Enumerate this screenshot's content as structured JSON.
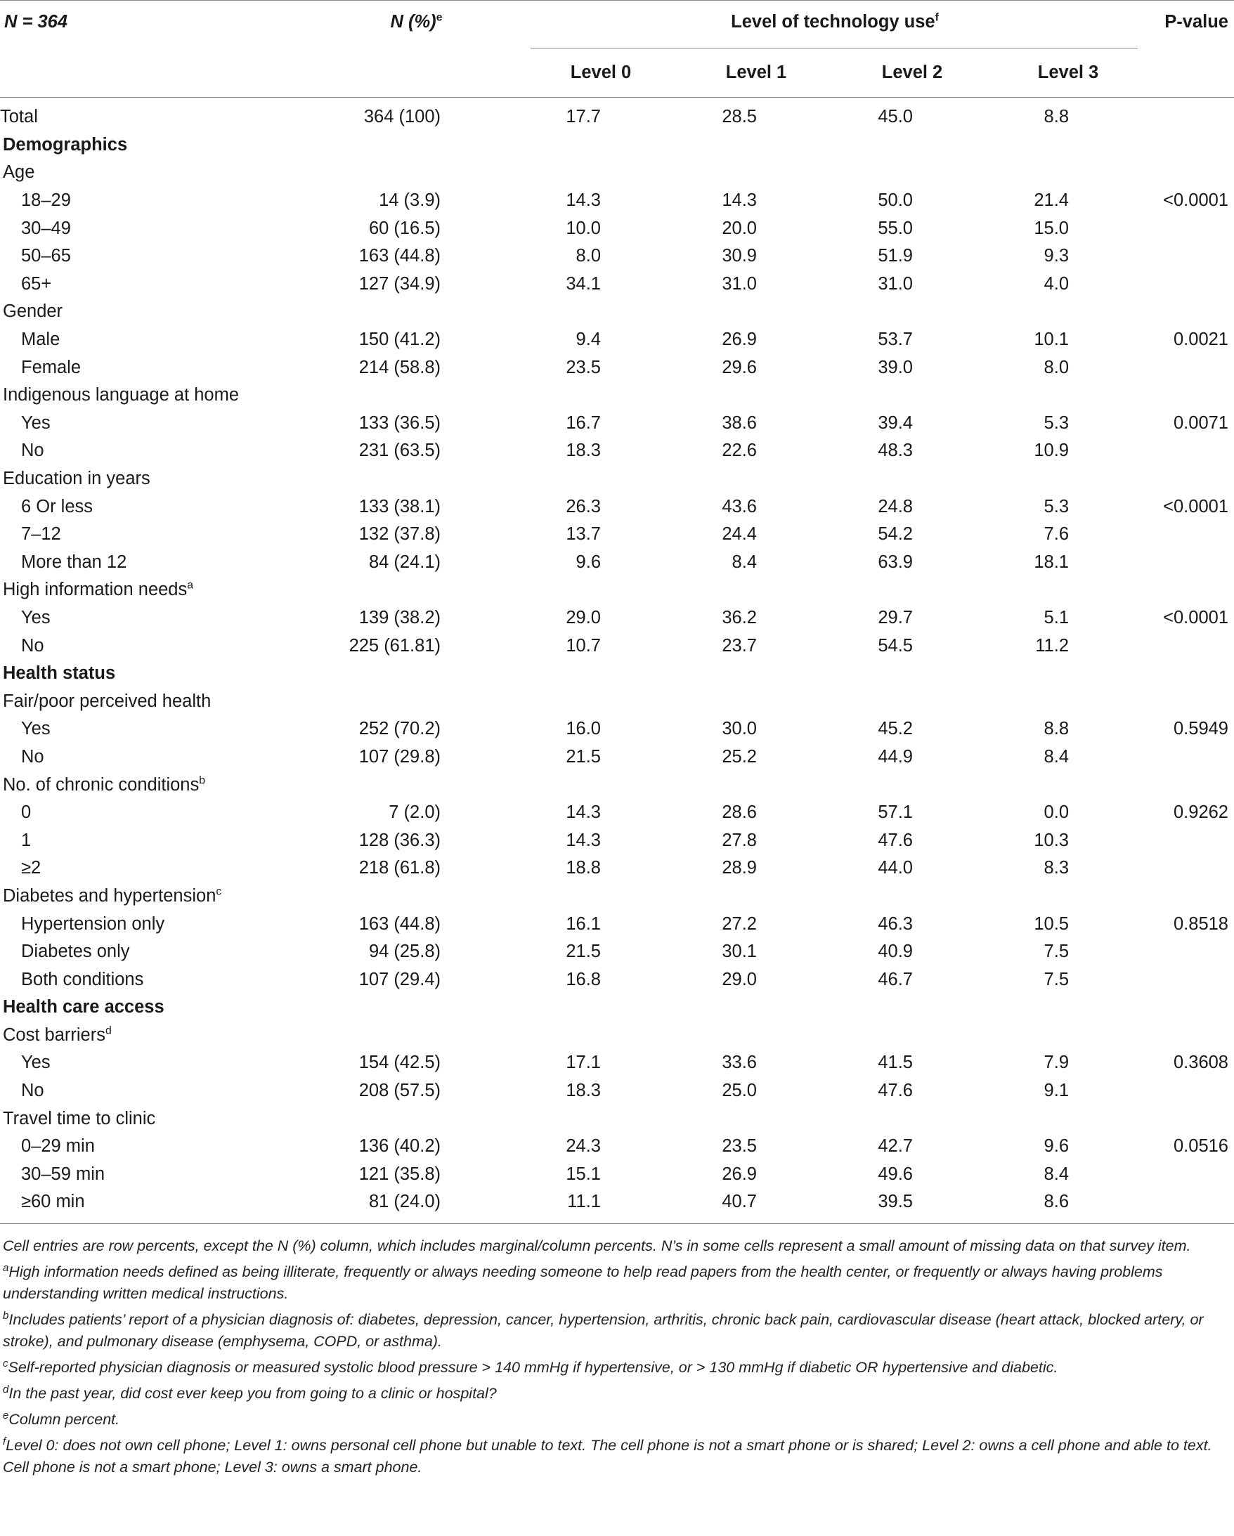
{
  "header": {
    "n_label": "N = 364",
    "npct_label": "N (%)",
    "npct_sup": "e",
    "level_group_label": "Level of technology use",
    "level_group_sup": "f",
    "pvalue_label": "P-value",
    "levels": [
      "Level 0",
      "Level 1",
      "Level 2",
      "Level 3"
    ]
  },
  "rows": [
    {
      "type": "data",
      "indent": 0,
      "label": "Total",
      "n": "364 (100)",
      "l0": "17.7",
      "l1": "28.5",
      "l2": "45.0",
      "l3": "8.8",
      "p": ""
    },
    {
      "type": "section",
      "label": "Demographics"
    },
    {
      "type": "group",
      "label": "Age",
      "sup": ""
    },
    {
      "type": "data",
      "indent": 2,
      "label": "18–29",
      "n": "14 (3.9)",
      "l0": "14.3",
      "l1": "14.3",
      "l2": "50.0",
      "l3": "21.4",
      "p": "<0.0001"
    },
    {
      "type": "data",
      "indent": 2,
      "label": "30–49",
      "n": "60 (16.5)",
      "l0": "10.0",
      "l1": "20.0",
      "l2": "55.0",
      "l3": "15.0",
      "p": ""
    },
    {
      "type": "data",
      "indent": 2,
      "label": "50–65",
      "n": "163 (44.8)",
      "l0": "8.0",
      "l1": "30.9",
      "l2": "51.9",
      "l3": "9.3",
      "p": ""
    },
    {
      "type": "data",
      "indent": 2,
      "label": "65+",
      "n": "127 (34.9)",
      "l0": "34.1",
      "l1": "31.0",
      "l2": "31.0",
      "l3": "4.0",
      "p": ""
    },
    {
      "type": "group",
      "label": "Gender",
      "sup": ""
    },
    {
      "type": "data",
      "indent": 2,
      "label": "Male",
      "n": "150 (41.2)",
      "l0": "9.4",
      "l1": "26.9",
      "l2": "53.7",
      "l3": "10.1",
      "p": "0.0021"
    },
    {
      "type": "data",
      "indent": 2,
      "label": "Female",
      "n": "214 (58.8)",
      "l0": "23.5",
      "l1": "29.6",
      "l2": "39.0",
      "l3": "8.0",
      "p": ""
    },
    {
      "type": "group",
      "label": "Indigenous language at home",
      "sup": ""
    },
    {
      "type": "data",
      "indent": 2,
      "label": "Yes",
      "n": "133 (36.5)",
      "l0": "16.7",
      "l1": "38.6",
      "l2": "39.4",
      "l3": "5.3",
      "p": "0.0071"
    },
    {
      "type": "data",
      "indent": 2,
      "label": "No",
      "n": "231 (63.5)",
      "l0": "18.3",
      "l1": "22.6",
      "l2": "48.3",
      "l3": "10.9",
      "p": ""
    },
    {
      "type": "group",
      "label": "Education in years",
      "sup": ""
    },
    {
      "type": "data",
      "indent": 2,
      "label": "6 Or less",
      "n": "133 (38.1)",
      "l0": "26.3",
      "l1": "43.6",
      "l2": "24.8",
      "l3": "5.3",
      "p": "<0.0001"
    },
    {
      "type": "data",
      "indent": 2,
      "label": "7–12",
      "n": "132 (37.8)",
      "l0": "13.7",
      "l1": "24.4",
      "l2": "54.2",
      "l3": "7.6",
      "p": ""
    },
    {
      "type": "data",
      "indent": 2,
      "label": "More than 12",
      "n": "84 (24.1)",
      "l0": "9.6",
      "l1": "8.4",
      "l2": "63.9",
      "l3": "18.1",
      "p": ""
    },
    {
      "type": "group",
      "label": "High information needs",
      "sup": "a"
    },
    {
      "type": "data",
      "indent": 2,
      "label": "Yes",
      "n": "139 (38.2)",
      "l0": "29.0",
      "l1": "36.2",
      "l2": "29.7",
      "l3": "5.1",
      "p": "<0.0001"
    },
    {
      "type": "data",
      "indent": 2,
      "label": "No",
      "n": "225 (61.81)",
      "l0": "10.7",
      "l1": "23.7",
      "l2": "54.5",
      "l3": "11.2",
      "p": ""
    },
    {
      "type": "section",
      "label": "Health status"
    },
    {
      "type": "group",
      "label": "Fair/poor perceived health",
      "sup": ""
    },
    {
      "type": "data",
      "indent": 2,
      "label": "Yes",
      "n": "252 (70.2)",
      "l0": "16.0",
      "l1": "30.0",
      "l2": "45.2",
      "l3": "8.8",
      "p": "0.5949"
    },
    {
      "type": "data",
      "indent": 2,
      "label": "No",
      "n": "107 (29.8)",
      "l0": "21.5",
      "l1": "25.2",
      "l2": "44.9",
      "l3": "8.4",
      "p": ""
    },
    {
      "type": "group",
      "label": "No. of chronic conditions",
      "sup": "b"
    },
    {
      "type": "data",
      "indent": 2,
      "label": "0",
      "n": "7 (2.0)",
      "l0": "14.3",
      "l1": "28.6",
      "l2": "57.1",
      "l3": "0.0",
      "p": "0.9262"
    },
    {
      "type": "data",
      "indent": 2,
      "label": "1",
      "n": "128 (36.3)",
      "l0": "14.3",
      "l1": "27.8",
      "l2": "47.6",
      "l3": "10.3",
      "p": ""
    },
    {
      "type": "data",
      "indent": 2,
      "label": "≥2",
      "n": "218 (61.8)",
      "l0": "18.8",
      "l1": "28.9",
      "l2": "44.0",
      "l3": "8.3",
      "p": ""
    },
    {
      "type": "group",
      "label": "Diabetes and hypertension",
      "sup": "c"
    },
    {
      "type": "data",
      "indent": 2,
      "label": "Hypertension only",
      "n": "163 (44.8)",
      "l0": "16.1",
      "l1": "27.2",
      "l2": "46.3",
      "l3": "10.5",
      "p": "0.8518"
    },
    {
      "type": "data",
      "indent": 2,
      "label": "Diabetes only",
      "n": "94 (25.8)",
      "l0": "21.5",
      "l1": "30.1",
      "l2": "40.9",
      "l3": "7.5",
      "p": ""
    },
    {
      "type": "data",
      "indent": 2,
      "label": "Both conditions",
      "n": "107 (29.4)",
      "l0": "16.8",
      "l1": "29.0",
      "l2": "46.7",
      "l3": "7.5",
      "p": ""
    },
    {
      "type": "section",
      "label": "Health care access"
    },
    {
      "type": "group",
      "label": "Cost barriers",
      "sup": "d"
    },
    {
      "type": "data",
      "indent": 2,
      "label": "Yes",
      "n": "154 (42.5)",
      "l0": "17.1",
      "l1": "33.6",
      "l2": "41.5",
      "l3": "7.9",
      "p": "0.3608"
    },
    {
      "type": "data",
      "indent": 2,
      "label": "No",
      "n": "208 (57.5)",
      "l0": "18.3",
      "l1": "25.0",
      "l2": "47.6",
      "l3": "9.1",
      "p": ""
    },
    {
      "type": "group",
      "label": "Travel time to clinic",
      "sup": ""
    },
    {
      "type": "data",
      "indent": 2,
      "label": "0–29 min",
      "n": "136 (40.2)",
      "l0": "24.3",
      "l1": "23.5",
      "l2": "42.7",
      "l3": "9.6",
      "p": "0.0516"
    },
    {
      "type": "data",
      "indent": 2,
      "label": "30–59 min",
      "n": "121 (35.8)",
      "l0": "15.1",
      "l1": "26.9",
      "l2": "49.6",
      "l3": "8.4",
      "p": ""
    },
    {
      "type": "data",
      "indent": 2,
      "label": "≥60 min",
      "n": "81 (24.0)",
      "l0": "11.1",
      "l1": "40.7",
      "l2": "39.5",
      "l3": "8.6",
      "p": ""
    }
  ],
  "notes": [
    {
      "sup": "",
      "text": "Cell entries are row percents, except the N (%) column, which includes marginal/column percents. N’s in some cells represent a small amount of missing data on that survey item."
    },
    {
      "sup": "a",
      "text": "High information needs defined as being illiterate, frequently or always needing someone to help read papers from the health center, or frequently or always having problems understanding written medical instructions."
    },
    {
      "sup": "b",
      "text": "Includes patients’ report of a physician diagnosis of: diabetes, depression, cancer, hypertension, arthritis, chronic back pain, cardiovascular disease (heart attack, blocked artery, or stroke), and pulmonary disease (emphysema, COPD, or asthma)."
    },
    {
      "sup": "c",
      "text": "Self-reported physician diagnosis or measured systolic blood pressure > 140 mmHg if hypertensive, or > 130 mmHg if diabetic OR hypertensive and diabetic."
    },
    {
      "sup": "d",
      "text": "In the past year, did cost ever keep you from going to a clinic or hospital?"
    },
    {
      "sup": "e",
      "text": "Column percent."
    },
    {
      "sup": "f",
      "text": "Level 0: does not own cell phone; Level 1: owns personal cell phone but unable to text. The cell phone is not a smart phone or is shared; Level 2: owns a cell phone and able to text. Cell phone is not a smart phone; Level 3: owns a smart phone."
    }
  ]
}
